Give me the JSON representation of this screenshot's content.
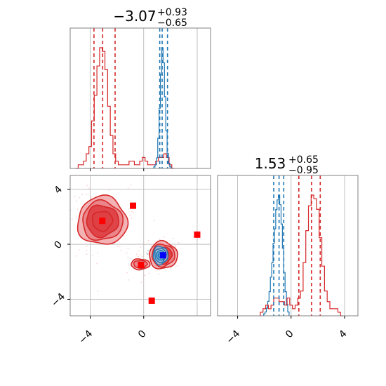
{
  "colors": {
    "red": "#d62728",
    "blue": "#1f77b4",
    "marker_red": "#ff0000",
    "marker_blue": "#0000ff",
    "grid": "#b0b0b0",
    "frame": "#808080",
    "red_fill_light": "#f2aeb0",
    "red_fill_mid": "#e98488",
    "red_fill_dark": "#dd4045"
  },
  "chart_data": [
    {
      "type": "histogram",
      "panel": "marginal-param1",
      "title": "",
      "title_value": "−3.07",
      "title_plus": "+0.93",
      "title_minus": "−0.65",
      "xlim": [
        -5.5,
        5.0
      ],
      "grid": true,
      "series": [
        {
          "color": "#d62728",
          "quantile_lines": [
            -3.72,
            -3.07,
            -2.14
          ],
          "bin_centers": [
            -5.0,
            -4.8,
            -4.6,
            -4.4,
            -4.2,
            -4.0,
            -3.8,
            -3.6,
            -3.4,
            -3.2,
            -3.0,
            -2.8,
            -2.6,
            -2.4,
            -2.2,
            -2.0,
            -1.8,
            -1.6,
            -1.4,
            -1.2,
            -1.0,
            -0.8,
            -0.6,
            -0.4,
            -0.2,
            0.0,
            0.2,
            0.4,
            0.6,
            0.8,
            1.0,
            1.2,
            1.4,
            1.6,
            1.8,
            2.0,
            2.2
          ],
          "counts": [
            0,
            1,
            1,
            2,
            4,
            6,
            13,
            20,
            28,
            33,
            32,
            27,
            17,
            9,
            4,
            2,
            1,
            1,
            1,
            1,
            2,
            2,
            1,
            1,
            2,
            3,
            2,
            1,
            1,
            1,
            2,
            3,
            3,
            4,
            3,
            1,
            0
          ]
        },
        {
          "color": "#1f77b4",
          "quantile_lines": [
            1.2,
            1.38,
            1.78
          ],
          "bin_centers": [
            0.8,
            0.9,
            1.0,
            1.1,
            1.2,
            1.3,
            1.4,
            1.5,
            1.6,
            1.7,
            1.8,
            1.9,
            2.0
          ],
          "counts": [
            2,
            5,
            14,
            40,
            80,
            125,
            160,
            140,
            95,
            50,
            20,
            7,
            2
          ]
        }
      ]
    },
    {
      "type": "histogram",
      "panel": "marginal-param2",
      "title": "",
      "title_value": "1.53",
      "title_plus": "+0.65",
      "title_minus": "−0.95",
      "xlim": [
        -5.5,
        5.0
      ],
      "grid": true,
      "series": [
        {
          "color": "#1f77b4",
          "quantile_lines": [
            -1.3,
            -0.9,
            -0.55
          ],
          "bin_centers": [
            -2.0,
            -1.9,
            -1.8,
            -1.7,
            -1.6,
            -1.5,
            -1.4,
            -1.3,
            -1.2,
            -1.1,
            -1.0,
            -0.9,
            -0.8,
            -0.7,
            -0.6,
            -0.5,
            -0.4,
            -0.3,
            -0.2
          ],
          "counts": [
            2,
            4,
            8,
            15,
            25,
            40,
            55,
            75,
            90,
            110,
            120,
            125,
            115,
            95,
            70,
            45,
            25,
            12,
            4
          ]
        },
        {
          "color": "#d62728",
          "quantile_lines": [
            0.58,
            1.53,
            2.18
          ],
          "bin_centers": [
            -2.2,
            -2.0,
            -1.8,
            -1.6,
            -1.4,
            -1.2,
            -1.0,
            -0.8,
            -0.6,
            -0.4,
            -0.2,
            0.0,
            0.2,
            0.4,
            0.6,
            0.8,
            1.0,
            1.2,
            1.4,
            1.6,
            1.8,
            2.0,
            2.2,
            2.4,
            2.6,
            2.8,
            3.0,
            3.2,
            3.4,
            3.6,
            3.8
          ],
          "counts": [
            1,
            2,
            3,
            2,
            3,
            5,
            5,
            4,
            4,
            3,
            5,
            3,
            2,
            3,
            5,
            7,
            15,
            24,
            31,
            34,
            33,
            30,
            22,
            14,
            7,
            4,
            2,
            2,
            2,
            1,
            0
          ]
        }
      ]
    },
    {
      "type": "scatter_contour",
      "panel": "joint",
      "xlim": [
        -5.5,
        5.0
      ],
      "ylim": [
        -5.2,
        5.0
      ],
      "grid": true,
      "red_modes": [
        {
          "cx": -3.1,
          "cy": 1.7,
          "r": [
            1.85,
            1.5,
            1.2,
            0.75
          ]
        },
        {
          "cx": 1.45,
          "cy": -0.8,
          "r": [
            1.05,
            0.85,
            0.65,
            0.4
          ]
        },
        {
          "cx": -0.25,
          "cy": -1.45,
          "r": [
            0.7,
            0.5
          ]
        }
      ],
      "blue_mode": {
        "cx": 1.25,
        "cy": -0.8,
        "r": [
          0.55,
          0.42,
          0.3,
          0.16
        ]
      },
      "red_markers": [
        {
          "x": -3.1,
          "y": 1.7
        },
        {
          "x": -0.8,
          "y": 2.8
        },
        {
          "x": 4.0,
          "y": 0.7
        },
        {
          "x": -0.2,
          "y": -1.5
        },
        {
          "x": 0.6,
          "y": -4.1
        }
      ],
      "blue_marker": {
        "x": 1.45,
        "y": -0.8
      }
    }
  ],
  "axes": {
    "joint_x_ticks": [
      -4,
      0
    ],
    "joint_y_ticks": [
      4,
      0,
      -4
    ],
    "marg2_x_ticks": [
      -4,
      0,
      4
    ],
    "grid_lines": [
      -4,
      0,
      4
    ],
    "tick_labels": {
      "joint_x": [
        "−4",
        "0"
      ],
      "joint_y": [
        "4",
        "0",
        "−4"
      ],
      "marg2_x": [
        "−4",
        "0",
        "4"
      ]
    }
  }
}
